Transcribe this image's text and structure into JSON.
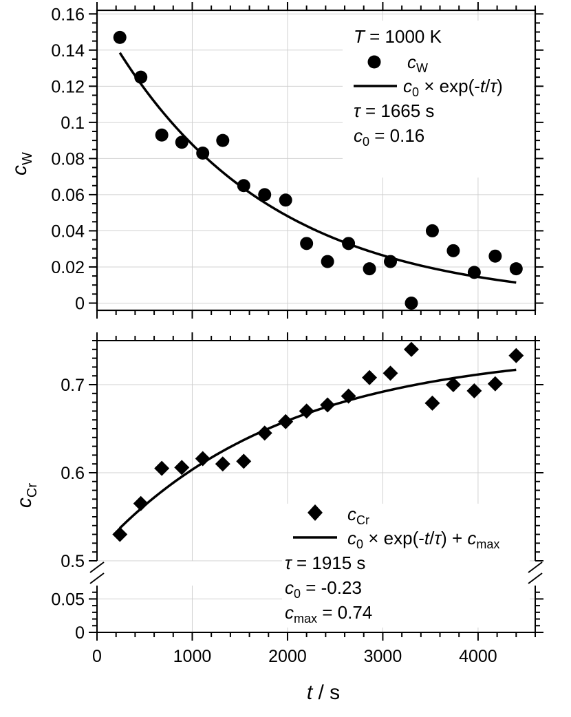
{
  "chart_data": [
    {
      "type": "scatter",
      "panel": "top",
      "ylabel_main": "c",
      "ylabel_sub": "W",
      "xlim": [
        0,
        4600
      ],
      "ylim": [
        -0.004,
        0.162
      ],
      "yticks": [
        0,
        0.02,
        0.04,
        0.06,
        0.08,
        0.1,
        0.12,
        0.14,
        0.16
      ],
      "ytick_labels": [
        "0",
        "0.02",
        "0.04",
        "0.06",
        "0.08",
        "0.1",
        "0.12",
        "0.14",
        "0.16"
      ],
      "series": [
        {
          "name": "cW",
          "marker": "circle",
          "x": [
            240,
            460,
            680,
            890,
            1110,
            1320,
            1540,
            1760,
            1980,
            2200,
            2420,
            2640,
            2860,
            3080,
            3300,
            3520,
            3740,
            3960,
            4180,
            4400
          ],
          "y": [
            0.147,
            0.125,
            0.093,
            0.089,
            0.083,
            0.09,
            0.065,
            0.06,
            0.057,
            0.033,
            0.023,
            0.033,
            0.019,
            0.023,
            0.0,
            0.04,
            0.029,
            0.017,
            0.026,
            0.019
          ]
        },
        {
          "name": "fit",
          "marker": "line",
          "model": "c0*exp(-t/tau)",
          "tau": 1665,
          "c0": 0.16,
          "x_range": [
            240,
            4400
          ]
        }
      ],
      "legend": {
        "title_var": "T",
        "title_rest": " = 1000 K",
        "entry1_main": "c",
        "entry1_sub": "W",
        "entry2_a": "c",
        "entry2_sub": "0",
        "entry2_b": " × exp(-",
        "entry2_t": "t",
        "entry2_slash": "/",
        "entry2_tau": "τ",
        "entry2_close": ")",
        "tau_sym": "τ",
        "tau_value": " = 1665 s",
        "c0_main": "c",
        "c0_sub": "0",
        "c0_value": " = 0.16"
      }
    },
    {
      "type": "scatter",
      "panel": "bottom",
      "ylabel_main": "c",
      "ylabel_sub": "Cr",
      "xlim": [
        0,
        4600
      ],
      "ylim_upper": [
        0.5,
        0.75
      ],
      "ylim_lower": [
        0,
        0.07
      ],
      "axis_break": true,
      "yticks_upper": [
        0.5,
        0.6,
        0.7
      ],
      "ytick_labels_upper": [
        "0.5",
        "0.6",
        "0.7"
      ],
      "yticks_lower": [
        0,
        0.05
      ],
      "ytick_labels_lower": [
        "0",
        "0.05"
      ],
      "series": [
        {
          "name": "cCr",
          "marker": "diamond",
          "x": [
            240,
            460,
            680,
            890,
            1110,
            1320,
            1540,
            1760,
            1980,
            2200,
            2420,
            2640,
            2860,
            3080,
            3300,
            3520,
            3740,
            3960,
            4180,
            4400
          ],
          "y": [
            0.53,
            0.565,
            0.605,
            0.606,
            0.616,
            0.61,
            0.613,
            0.645,
            0.658,
            0.67,
            0.677,
            0.687,
            0.708,
            0.713,
            0.74,
            0.679,
            0.7,
            0.693,
            0.701,
            0.733
          ]
        },
        {
          "name": "fit",
          "marker": "line",
          "model": "c0*exp(-t/tau)+cmax",
          "tau": 1915,
          "c0": -0.23,
          "cmax": 0.74,
          "x_range": [
            240,
            4400
          ]
        }
      ],
      "legend": {
        "entry1_main": "c",
        "entry1_sub": "Cr",
        "entry2_a": "c",
        "entry2_sub": "0",
        "entry2_b": " × exp(-",
        "entry2_t": "t",
        "entry2_slash": "/",
        "entry2_tau": "τ",
        "entry2_mid": ") + ",
        "entry2_c": "c",
        "entry2_csub": "max",
        "tau_sym": "τ",
        "tau_value": " = 1915 s",
        "c0_main": "c",
        "c0_sub": "0",
        "c0_value": " = -0.23",
        "cmax_main": "c",
        "cmax_sub": "max",
        "cmax_value": " = 0.74"
      }
    }
  ],
  "shared_x": {
    "xticks": [
      0,
      1000,
      2000,
      3000,
      4000
    ],
    "xtick_labels": [
      "0",
      "1000",
      "2000",
      "3000",
      "4000"
    ],
    "xlabel_var": "t",
    "xlabel_rest": " / s"
  }
}
